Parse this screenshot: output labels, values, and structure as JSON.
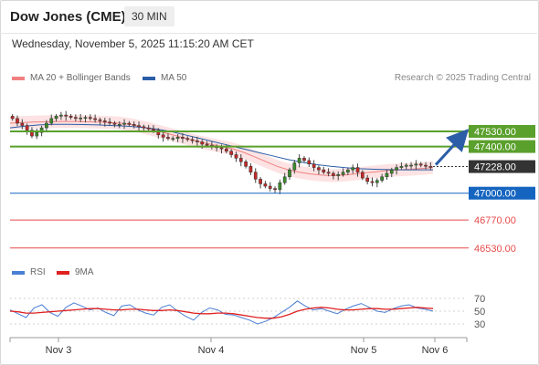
{
  "header": {
    "title": "Dow Jones (CME)",
    "interval": "30 MIN",
    "timestamp": "Wednesday, November 5, 2025 11:15:20 AM CET",
    "credit": "Research © 2025 Trading Central"
  },
  "legend": {
    "ma20_label": "MA 20 + Bollinger Bands",
    "ma50_label": "MA 50",
    "rsi_label": "RSI",
    "rsi9_label": "9MA"
  },
  "colors": {
    "ma20": "#f08080",
    "band_fill": "#fde0e0",
    "ma50": "#2b5ea7",
    "resistance": "#5aa02c",
    "pivot": "#1565c0",
    "support": "#e84b4b",
    "current": "#333333",
    "candle_up": "#3a8a2a",
    "candle_down": "#c62828",
    "arrow": "#2b5ea7",
    "rsi": "#4a7fd4",
    "rsi9": "#e02020"
  },
  "chart_data": [
    {
      "type": "candlestick",
      "x_labels": [
        "Nov 3",
        "Nov 4",
        "Nov 5",
        "Nov 6"
      ],
      "ylim": [
        46450,
        47780
      ],
      "levels": [
        {
          "label": "47530.00",
          "value": 47530,
          "kind": "resistance"
        },
        {
          "label": "47400.00",
          "value": 47400,
          "kind": "resistance"
        },
        {
          "label": "47228.00",
          "value": 47228,
          "kind": "current"
        },
        {
          "label": "47000.00",
          "value": 47000,
          "kind": "pivot"
        },
        {
          "label": "46770.00",
          "value": 46770,
          "kind": "support"
        },
        {
          "label": "46530.00",
          "value": 46530,
          "kind": "support"
        }
      ],
      "closes": [
        47640,
        47600,
        47580,
        47540,
        47490,
        47520,
        47560,
        47600,
        47640,
        47660,
        47670,
        47660,
        47650,
        47640,
        47645,
        47650,
        47640,
        47630,
        47620,
        47610,
        47600,
        47590,
        47590,
        47600,
        47590,
        47580,
        47570,
        47560,
        47550,
        47540,
        47500,
        47480,
        47470,
        47470,
        47480,
        47470,
        47460,
        47450,
        47440,
        47420,
        47410,
        47400,
        47390,
        47380,
        47360,
        47330,
        47300,
        47270,
        47230,
        47180,
        47120,
        47080,
        47060,
        47040,
        47030,
        47090,
        47140,
        47200,
        47260,
        47300,
        47280,
        47250,
        47220,
        47200,
        47180,
        47170,
        47150,
        47160,
        47180,
        47200,
        47220,
        47180,
        47130,
        47100,
        47090,
        47110,
        47140,
        47170,
        47200,
        47220,
        47230,
        47240,
        47240,
        47250,
        47240,
        47230,
        47228
      ],
      "ma20": [
        47600,
        47605,
        47610,
        47612,
        47614,
        47615,
        47615,
        47612,
        47610,
        47605,
        47600,
        47585,
        47565,
        47540,
        47515,
        47490,
        47465,
        47440,
        47420,
        47400,
        47380,
        47350,
        47310,
        47270,
        47230,
        47200,
        47180,
        47165,
        47155,
        47150,
        47155,
        47165,
        47175,
        47185,
        47195,
        47200,
        47205,
        47212,
        47220
      ],
      "ma50": [
        47560,
        47575,
        47585,
        47590,
        47590,
        47588,
        47585,
        47580,
        47575,
        47565,
        47550,
        47530,
        47500,
        47470,
        47440,
        47410,
        47380,
        47350,
        47320,
        47290,
        47265,
        47245,
        47230,
        47218,
        47210,
        47205,
        47202,
        47200,
        47200,
        47200
      ],
      "forecast": {
        "from": 47228,
        "to": 47530
      }
    },
    {
      "type": "line",
      "title": "RSI",
      "yticks": [
        30,
        50,
        70
      ],
      "ylim": [
        20,
        80
      ],
      "series": [
        {
          "name": "RSI",
          "values": [
            52,
            46,
            40,
            55,
            60,
            48,
            42,
            56,
            63,
            58,
            52,
            55,
            48,
            43,
            58,
            60,
            52,
            47,
            44,
            56,
            60,
            50,
            42,
            36,
            48,
            55,
            52,
            45,
            44,
            40,
            36,
            30,
            34,
            40,
            48,
            56,
            66,
            58,
            52,
            54,
            50,
            46,
            53,
            58,
            62,
            56,
            50,
            48,
            54,
            58,
            60,
            55,
            53,
            50
          ]
        },
        {
          "name": "9MA",
          "values": [
            50,
            49,
            47,
            47,
            48,
            49,
            50,
            51,
            52,
            53,
            54,
            54,
            53,
            52,
            52,
            53,
            53,
            52,
            51,
            51,
            52,
            51,
            49,
            47,
            46,
            46,
            47,
            47,
            46,
            44,
            42,
            40,
            39,
            39,
            41,
            45,
            50,
            53,
            55,
            56,
            55,
            53,
            52,
            52,
            53,
            54,
            54,
            53,
            53,
            54,
            55,
            56,
            55,
            54
          ]
        }
      ]
    }
  ]
}
